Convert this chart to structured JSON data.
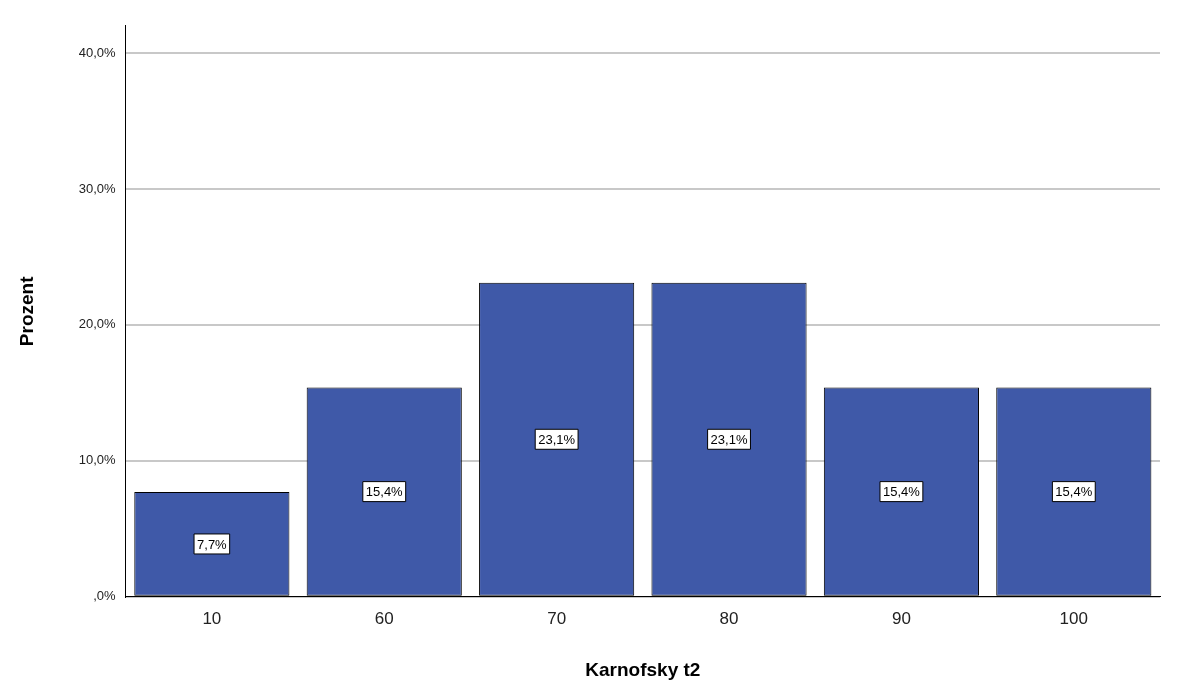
{
  "chart_data": {
    "type": "bar",
    "xlabel": "Karnofsky t2",
    "ylabel": "Prozent",
    "categories": [
      "10",
      "60",
      "70",
      "80",
      "90",
      "100"
    ],
    "values": [
      7.7,
      15.4,
      23.1,
      23.1,
      15.4,
      15.4
    ],
    "value_labels": [
      "7,7%",
      "15,4%",
      "23,1%",
      "23,1%",
      "15,4%",
      "15,4%"
    ],
    "color": "#3f59a8",
    "ylim": [
      0,
      42
    ],
    "yticks": [
      {
        "value": 0,
        "label": ",0%"
      },
      {
        "value": 10,
        "label": "10,0%"
      },
      {
        "value": 20,
        "label": "20,0%"
      },
      {
        "value": 30,
        "label": "30,0%"
      },
      {
        "value": 40,
        "label": "40,0%"
      }
    ],
    "grid": "y",
    "legend": false
  }
}
